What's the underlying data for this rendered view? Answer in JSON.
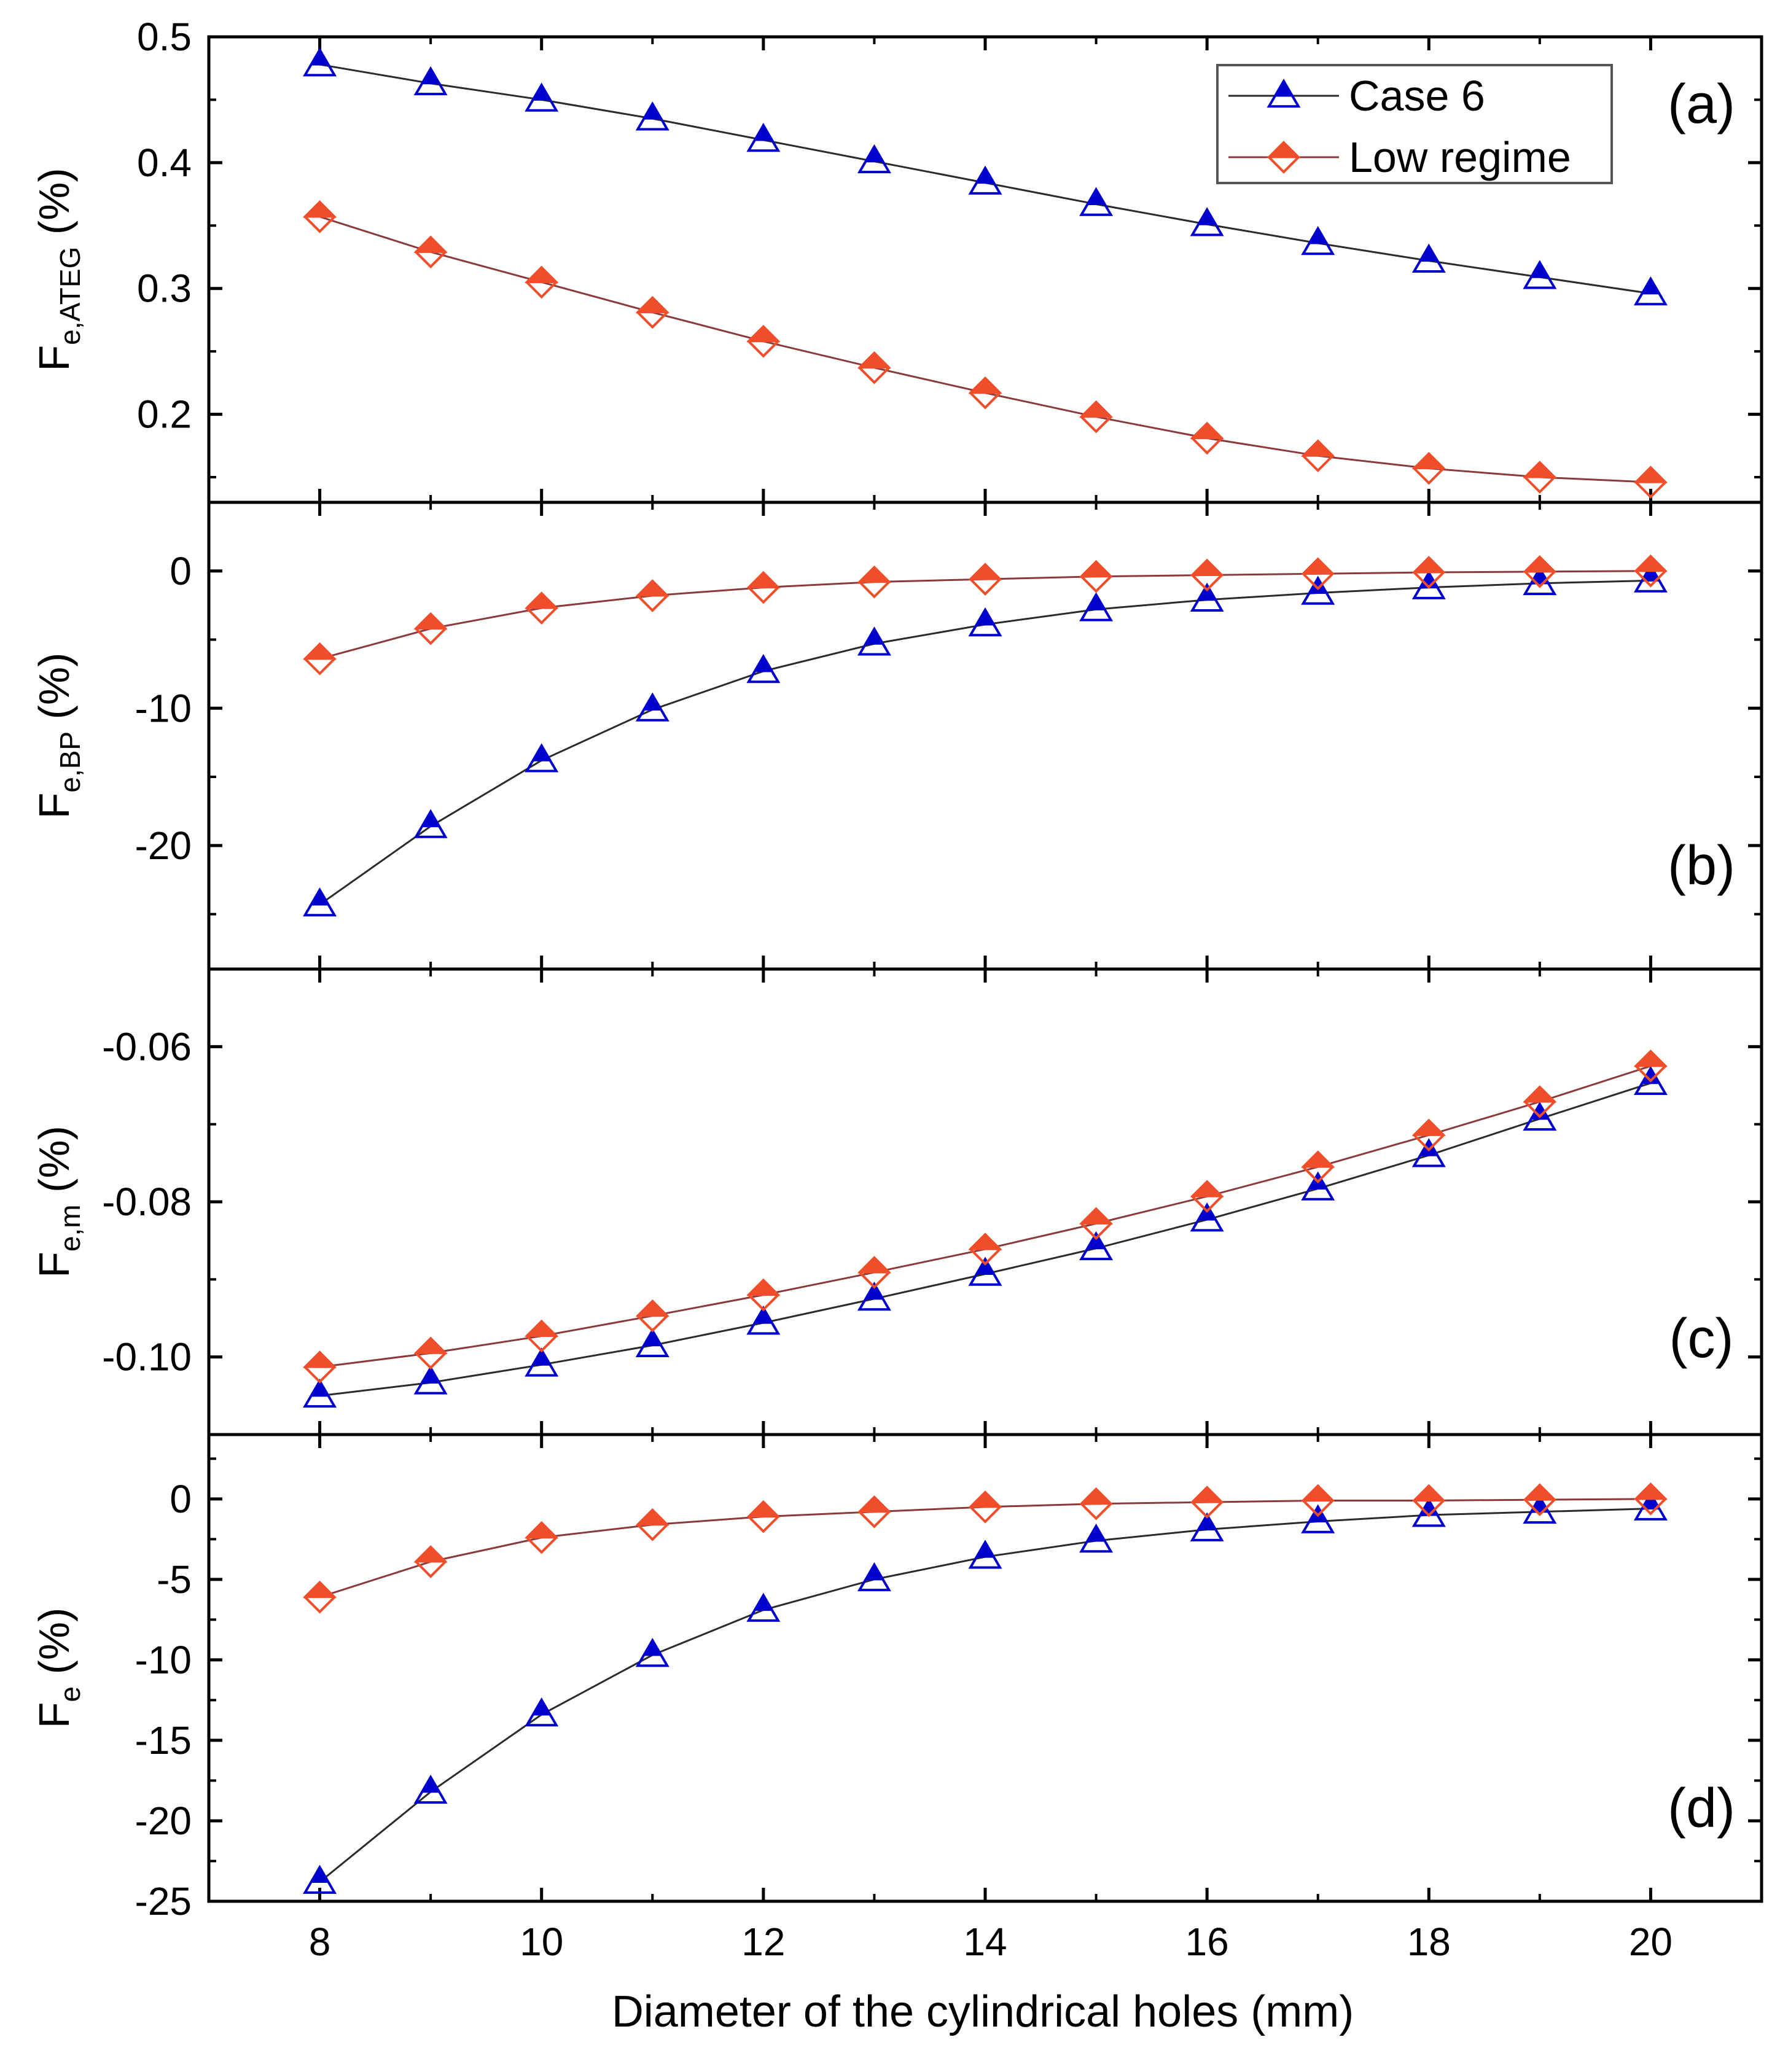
{
  "chart_data": {
    "type": "line",
    "xlabel": "Diameter of the cylindrical holes (mm)",
    "x": [
      8,
      9,
      10,
      11,
      12,
      13,
      14,
      15,
      16,
      17,
      18,
      19,
      20
    ],
    "xlim": [
      7,
      21
    ],
    "xticks": [
      8,
      10,
      12,
      14,
      16,
      18,
      20
    ],
    "legend": {
      "placement": "top-right of panel (a)",
      "entries": [
        "Case 6",
        "Low regime"
      ]
    },
    "series_styles": [
      {
        "name": "Case 6",
        "marker": "triangle",
        "color": "#0000cc",
        "line_color": "#2b2b2b"
      },
      {
        "name": "Low regime",
        "marker": "diamond",
        "color": "#f04e2b",
        "line_color": "#8a3a3a"
      }
    ],
    "panels": [
      {
        "label": "(a)",
        "ylabel_main": "F",
        "ylabel_sub": "e,ATEG",
        "ylabel_unit": "(%)",
        "ylim": [
          0.13,
          0.5
        ],
        "yticks": [
          0.2,
          0.3,
          0.4,
          0.5
        ],
        "ytick_labels": [
          "0.2",
          "0.3",
          "0.4",
          "0.5"
        ],
        "series": [
          {
            "name": "Case 6",
            "values": [
              0.478,
              0.463,
              0.45,
              0.435,
              0.418,
              0.401,
              0.384,
              0.367,
              0.351,
              0.336,
              0.322,
              0.309,
              0.296
            ]
          },
          {
            "name": "Low regime",
            "values": [
              0.357,
              0.329,
              0.305,
              0.281,
              0.258,
              0.237,
              0.217,
              0.198,
              0.181,
              0.167,
              0.157,
              0.15,
              0.146
            ]
          }
        ]
      },
      {
        "label": "(b)",
        "ylabel_main": "F",
        "ylabel_sub": "e,BP",
        "ylabel_unit": "(%)",
        "ylim": [
          -29,
          5
        ],
        "yticks": [
          -20,
          -10,
          0
        ],
        "ytick_labels": [
          "-20",
          "-10",
          "0"
        ],
        "series": [
          {
            "name": "Case 6",
            "values": [
              -24.3,
              -18.6,
              -13.8,
              -10.1,
              -7.3,
              -5.3,
              -3.9,
              -2.8,
              -2.1,
              -1.6,
              -1.2,
              -0.9,
              -0.7
            ]
          },
          {
            "name": "Low regime",
            "values": [
              -6.4,
              -4.2,
              -2.7,
              -1.8,
              -1.2,
              -0.8,
              -0.6,
              -0.4,
              -0.3,
              -0.2,
              -0.1,
              -0.05,
              0.0
            ]
          }
        ]
      },
      {
        "label": "(c)",
        "ylabel_main": "F",
        "ylabel_sub": "e,m",
        "ylabel_unit": "(%)",
        "ylim": [
          -0.11,
          -0.05
        ],
        "yticks": [
          -0.1,
          -0.08,
          -0.06
        ],
        "ytick_labels": [
          "-0.10",
          "-0.08",
          "-0.06"
        ],
        "series": [
          {
            "name": "Case 6",
            "values": [
              -0.105,
              -0.1033,
              -0.101,
              -0.0985,
              -0.0956,
              -0.0925,
              -0.0893,
              -0.086,
              -0.0823,
              -0.0783,
              -0.074,
              -0.0693,
              -0.0647
            ]
          },
          {
            "name": "Low regime",
            "values": [
              -0.1013,
              -0.0995,
              -0.0973,
              -0.0947,
              -0.092,
              -0.0891,
              -0.0861,
              -0.0828,
              -0.0793,
              -0.0755,
              -0.0714,
              -0.0671,
              -0.0625
            ]
          }
        ]
      },
      {
        "label": "(d)",
        "ylabel_main": "F",
        "ylabel_sub": "e",
        "ylabel_unit": "(%)",
        "ylim": [
          -25,
          4
        ],
        "yticks": [
          -25,
          -20,
          -15,
          -10,
          -5,
          0
        ],
        "ytick_labels": [
          "-25",
          "-20",
          "-15",
          "-10",
          "-5",
          "0"
        ],
        "series": [
          {
            "name": "Case 6",
            "values": [
              -23.8,
              -18.2,
              -13.4,
              -9.7,
              -6.9,
              -5.0,
              -3.6,
              -2.6,
              -1.9,
              -1.4,
              -1.0,
              -0.8,
              -0.6
            ]
          },
          {
            "name": "Low regime",
            "values": [
              -6.1,
              -3.9,
              -2.4,
              -1.6,
              -1.1,
              -0.8,
              -0.5,
              -0.3,
              -0.2,
              -0.1,
              -0.1,
              -0.05,
              0.0
            ]
          }
        ]
      }
    ]
  }
}
